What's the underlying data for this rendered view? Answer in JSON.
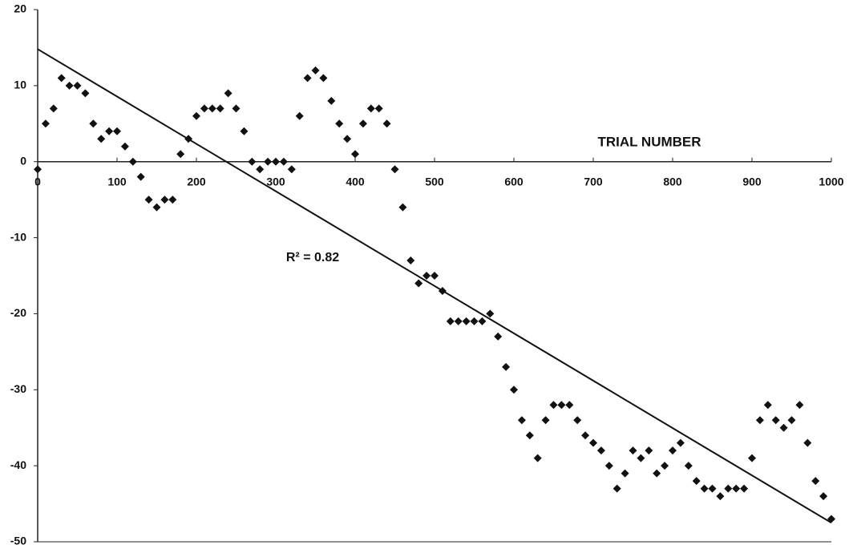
{
  "chart_data": {
    "type": "scatter",
    "x_label": "TRIAL NUMBER",
    "annotation": "R² = 0.82",
    "xlim": [
      0,
      1000
    ],
    "ylim": [
      -50,
      20
    ],
    "xticks": [
      0,
      100,
      200,
      300,
      400,
      500,
      600,
      700,
      800,
      900,
      1000
    ],
    "yticks": [
      -50,
      -40,
      -30,
      -20,
      -10,
      0,
      10,
      20
    ],
    "color": "#111111",
    "trendline": {
      "x": [
        0,
        1000
      ],
      "y": [
        14.8,
        -47.5
      ]
    },
    "x": [
      0,
      10,
      20,
      30,
      40,
      50,
      60,
      70,
      80,
      90,
      100,
      110,
      120,
      130,
      140,
      150,
      160,
      170,
      180,
      190,
      200,
      210,
      220,
      230,
      240,
      250,
      260,
      270,
      280,
      290,
      300,
      310,
      320,
      330,
      340,
      350,
      360,
      370,
      380,
      390,
      400,
      410,
      420,
      430,
      440,
      450,
      460,
      470,
      480,
      490,
      500,
      510,
      520,
      530,
      540,
      550,
      560,
      570,
      580,
      590,
      600,
      610,
      620,
      630,
      640,
      650,
      660,
      670,
      680,
      690,
      700,
      710,
      720,
      730,
      740,
      750,
      760,
      770,
      780,
      790,
      800,
      810,
      820,
      830,
      840,
      850,
      860,
      870,
      880,
      890,
      900,
      910,
      920,
      930,
      940,
      950,
      960,
      970,
      980,
      990,
      1000
    ],
    "values": [
      -1,
      5,
      7,
      11,
      10,
      10,
      9,
      5,
      3,
      4,
      4,
      2,
      0,
      -2,
      -5,
      -6,
      -5,
      -5,
      1,
      3,
      6,
      7,
      7,
      7,
      9,
      7,
      4,
      0,
      -1,
      0,
      0,
      0,
      -1,
      6,
      11,
      12,
      11,
      8,
      5,
      3,
      1,
      5,
      7,
      7,
      5,
      -1,
      -6,
      -13,
      -16,
      -15,
      -15,
      -17,
      -21,
      -21,
      -21,
      -21,
      -21,
      -20,
      -23,
      -27,
      -30,
      -34,
      -36,
      -39,
      -34,
      -32,
      -32,
      -32,
      -34,
      -36,
      -37,
      -38,
      -40,
      -43,
      -41,
      -38,
      -39,
      -38,
      -41,
      -40,
      -38,
      -37,
      -40,
      -42,
      -43,
      -43,
      -44,
      -43,
      -43,
      -43,
      -39,
      -34,
      -32,
      -34,
      -35,
      -34,
      -32,
      -37,
      -42,
      -44,
      -47
    ]
  }
}
